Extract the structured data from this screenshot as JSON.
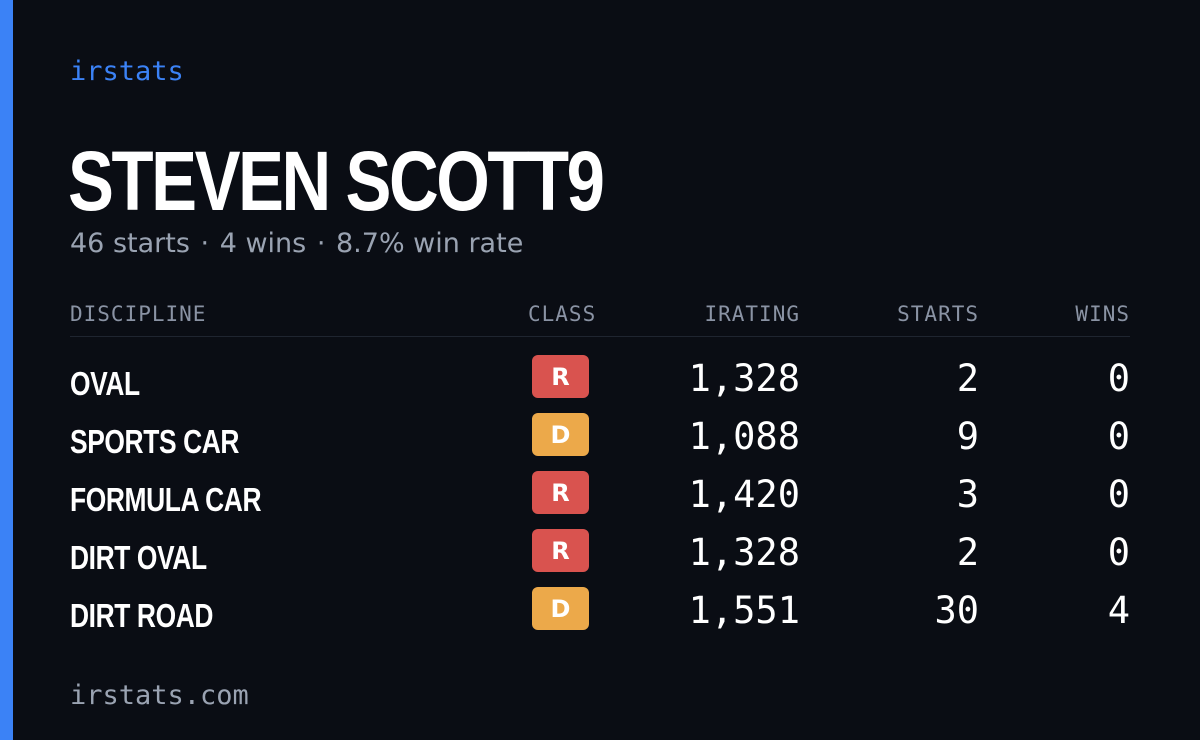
{
  "brand": "irstats",
  "driver": {
    "name": "STEVEN SCOTT9",
    "starts": "46 starts",
    "wins": "4 wins",
    "win_rate": "8.7% win rate",
    "separator": "·"
  },
  "table": {
    "headers": {
      "discipline": "DISCIPLINE",
      "class": "CLASS",
      "irating": "IRATING",
      "starts": "STARTS",
      "wins": "WINS"
    },
    "rows": [
      {
        "discipline": "OVAL",
        "class": "R",
        "irating": "1,328",
        "starts": "2",
        "wins": "0"
      },
      {
        "discipline": "SPORTS CAR",
        "class": "D",
        "irating": "1,088",
        "starts": "9",
        "wins": "0"
      },
      {
        "discipline": "FORMULA CAR",
        "class": "R",
        "irating": "1,420",
        "starts": "3",
        "wins": "0"
      },
      {
        "discipline": "DIRT OVAL",
        "class": "R",
        "irating": "1,328",
        "starts": "2",
        "wins": "0"
      },
      {
        "discipline": "DIRT ROAD",
        "class": "D",
        "irating": "1,551",
        "starts": "30",
        "wins": "4"
      }
    ]
  },
  "footer": "irstats.com",
  "colors": {
    "background": "#0a0d14",
    "accent": "#3b82f6",
    "class_r": "#d9534f",
    "class_d": "#eca94a",
    "muted_text": "#9aa3b2"
  }
}
